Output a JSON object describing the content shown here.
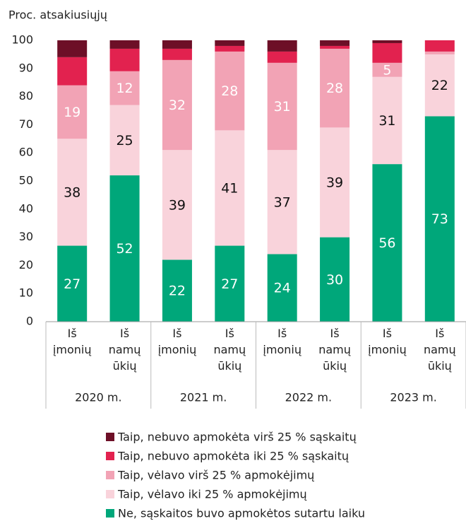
{
  "chart_data": {
    "type": "stacked_bar",
    "y_axis_label": "Proc. atsakiusiųjų",
    "categories": [
      "Iš įmonių",
      "Iš namų ūkių",
      "Iš įmonių",
      "Iš namų ūkių",
      "Iš įmonių",
      "Iš namų ūkių",
      "Iš įmonių",
      "Iš namų ūkių"
    ],
    "groups": [
      "2020 m.",
      "2021 m.",
      "2022 m.",
      "2023 m."
    ],
    "series": [
      {
        "name": "Ne, sąskaitos buvo apmokėtos sutartu laiku",
        "color": "#00a77a",
        "label_color": "#ffffff",
        "labels": true,
        "values": [
          27,
          52,
          22,
          27,
          24,
          30,
          56,
          73
        ]
      },
      {
        "name": "Taip, vėlavo iki 25 % apmokėjimų",
        "color": "#f9d3db",
        "label_color": "#111111",
        "labels": true,
        "values": [
          38,
          25,
          39,
          41,
          37,
          39,
          31,
          22
        ]
      },
      {
        "name": "Taip, vėlavo virš 25 % apmokėjimų",
        "color": "#f2a3b5",
        "label_color": "#ffffff",
        "labels": true,
        "values": [
          19,
          12,
          32,
          28,
          31,
          28,
          5,
          1
        ]
      },
      {
        "name": "Taip, nebuvo apmokėta iki 25 % sąskaitų",
        "color": "#e2224f",
        "labels": false,
        "values": [
          10,
          8,
          4,
          2,
          4,
          1,
          7,
          4
        ]
      },
      {
        "name": "Taip, nebuvo apmokėta virš 25 % sąskaitų",
        "color": "#6d0f27",
        "labels": false,
        "values": [
          6,
          3,
          3,
          2,
          4,
          2,
          1,
          0
        ]
      }
    ],
    "ylim": [
      0,
      100
    ],
    "yticks": [
      0,
      10,
      20,
      30,
      40,
      50,
      60,
      70,
      80,
      90,
      100
    ],
    "grid": false
  }
}
